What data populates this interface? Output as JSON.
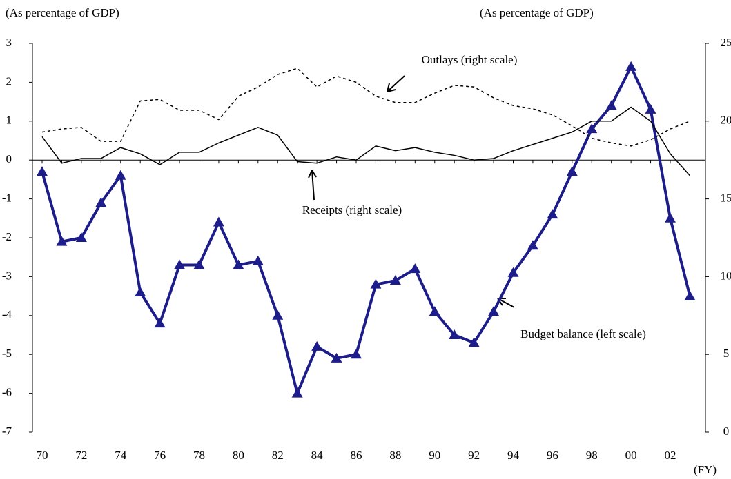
{
  "chart_data": {
    "type": "line",
    "y_label": "(As percentage of GDP)",
    "y2_label": "(As percentage of GDP)",
    "x_label": "(FY)",
    "categories": [
      "70",
      null,
      "72",
      null,
      "74",
      null,
      "76",
      null,
      "78",
      null,
      "80",
      null,
      "82",
      null,
      "84",
      null,
      "86",
      null,
      "88",
      null,
      "90",
      null,
      "92",
      null,
      "94",
      null,
      "96",
      null,
      "98",
      null,
      "00",
      null,
      "02",
      null
    ],
    "ylim": [
      -7,
      3
    ],
    "yticks": [
      -7,
      -6,
      -5,
      -4,
      -3,
      -2,
      -1,
      0,
      1,
      2,
      3
    ],
    "y2lim": [
      0,
      25
    ],
    "y2ticks": [
      0,
      5,
      10,
      15,
      20,
      25
    ],
    "series": [
      {
        "name": "Budget balance",
        "axis": "y",
        "color": "#1c1c8a",
        "line_style": "solid",
        "marker": "triangle",
        "values": [
          -0.3,
          -2.1,
          -2.0,
          -1.1,
          -0.4,
          -3.4,
          -4.2,
          -2.7,
          -2.7,
          -1.6,
          -2.7,
          -2.6,
          -4.0,
          -6.0,
          -4.8,
          -5.1,
          -5.0,
          -3.2,
          -3.1,
          -2.8,
          -3.9,
          -4.5,
          -4.7,
          -3.9,
          -2.9,
          -2.2,
          -1.4,
          -0.3,
          0.8,
          1.4,
          2.4,
          1.3,
          -1.5,
          -3.5
        ]
      },
      {
        "name": "Outlays",
        "axis": "y2",
        "color": "#000000",
        "line_style": "dotted",
        "marker": "none",
        "values": [
          19.3,
          19.5,
          19.6,
          18.7,
          18.7,
          21.3,
          21.4,
          20.7,
          20.7,
          20.1,
          21.6,
          22.2,
          23.0,
          23.4,
          22.2,
          22.9,
          22.5,
          21.6,
          21.2,
          21.2,
          21.8,
          22.3,
          22.2,
          21.5,
          21.0,
          20.8,
          20.4,
          19.7,
          18.9,
          18.6,
          18.4,
          18.8,
          19.5,
          20.0
        ]
      },
      {
        "name": "Receipts",
        "axis": "y2",
        "color": "#000000",
        "line_style": "solid",
        "marker": "none",
        "values": [
          19.0,
          17.3,
          17.6,
          17.6,
          18.3,
          17.9,
          17.2,
          18.0,
          18.0,
          18.6,
          19.1,
          19.6,
          19.1,
          17.4,
          17.3,
          17.7,
          17.5,
          18.4,
          18.1,
          18.3,
          18.0,
          17.8,
          17.5,
          17.6,
          18.1,
          18.5,
          18.9,
          19.3,
          20.0,
          20.0,
          20.9,
          20.0,
          17.9,
          16.5
        ]
      }
    ],
    "annotations": [
      "Outlays (right scale)",
      "Receipts (right scale)",
      "Budget balance (left scale)"
    ]
  }
}
